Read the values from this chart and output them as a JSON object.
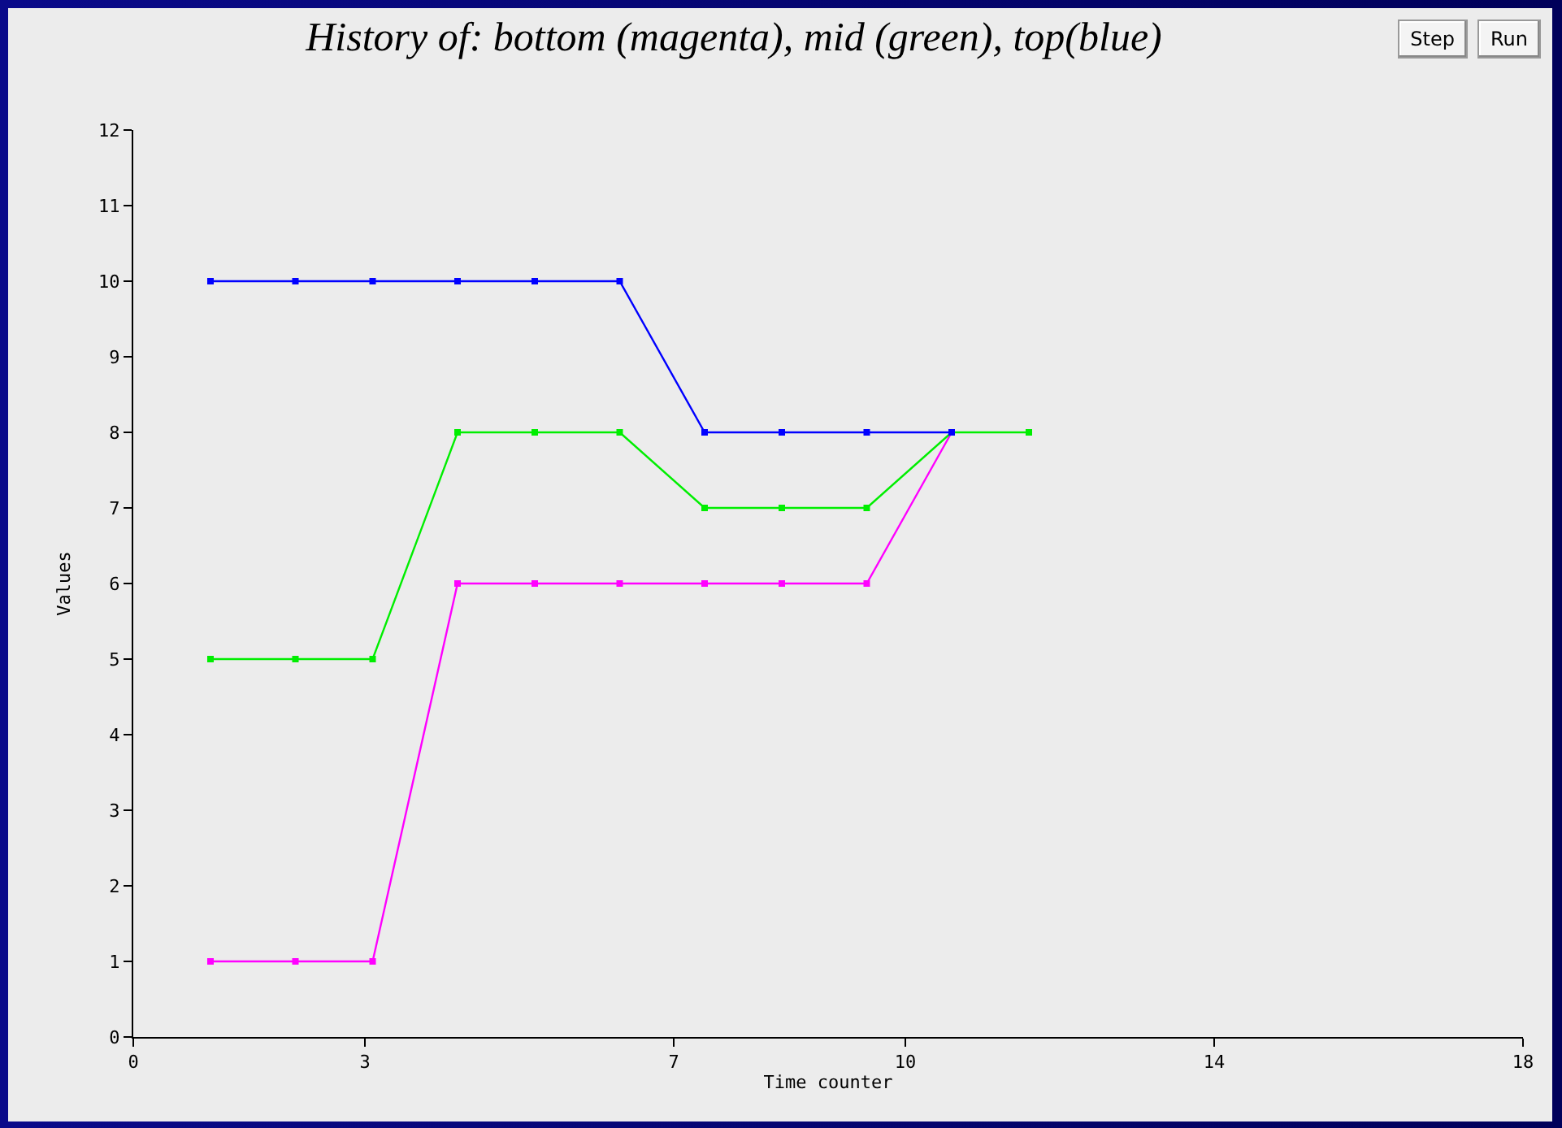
{
  "chart_data": {
    "type": "line",
    "title": "History of: bottom (magenta), mid (green), top(blue)",
    "xlabel": "Time counter",
    "ylabel": "Values",
    "annotations": [
      "Step",
      "Run"
    ],
    "x": [
      1.0,
      2.1,
      3.1,
      4.2,
      5.2,
      6.3,
      7.4,
      8.4,
      9.5,
      10.6,
      11.6
    ],
    "series": [
      {
        "color": "#ff00ff",
        "values": [
          1,
          1,
          1,
          6,
          6,
          6,
          6,
          6,
          6,
          8,
          null
        ]
      },
      {
        "color": "#00ee00",
        "values": [
          5,
          5,
          5,
          8,
          8,
          8,
          7,
          7,
          7,
          8,
          8
        ]
      },
      {
        "color": "#0000ff",
        "values": [
          10,
          10,
          10,
          10,
          10,
          10,
          8,
          8,
          8,
          8,
          null
        ]
      }
    ],
    "xlim": [
      0,
      18
    ],
    "xticks": [
      0,
      3,
      7,
      10,
      14,
      18
    ],
    "ylim": [
      0,
      12
    ],
    "yticks": [
      0,
      1,
      2,
      3,
      4,
      5,
      6,
      7,
      8,
      9,
      10,
      11,
      12
    ],
    "legend": false,
    "marker": "square",
    "line_style": "solid"
  }
}
